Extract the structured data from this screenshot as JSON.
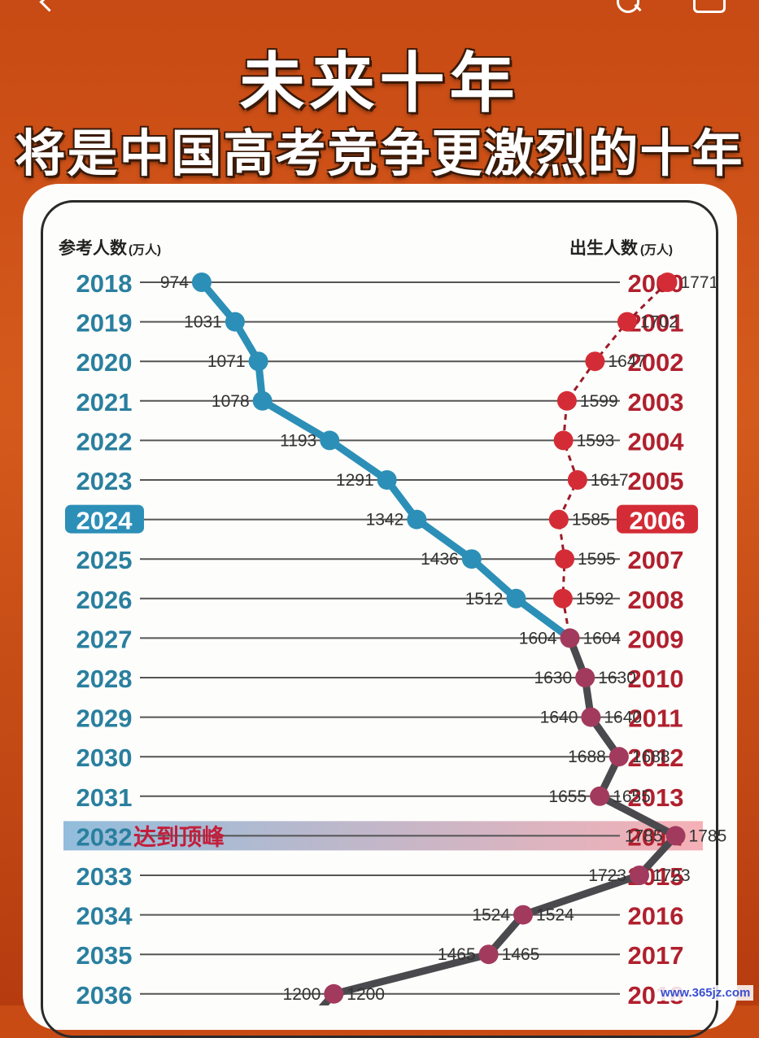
{
  "page": {
    "title_main": "未来十年",
    "title_sub": "将是中国高考竞争更激烈的十年",
    "watermark": "www.365jz.com"
  },
  "icons": {
    "back": "chevron-left-icon",
    "search": "search-icon",
    "more": "more-icon"
  },
  "colors": {
    "exam_color": "#2c8fb7",
    "birth_color": "#d42c36",
    "merged_color": "#4a4a4e",
    "highlight_left": "#7fb2d6",
    "highlight_right": "#f4a3aa",
    "peak_label_color": "#c21f3c"
  },
  "chart_data": {
    "type": "line",
    "left_axis_label": "参考人数",
    "left_axis_unit": "(万人)",
    "right_axis_label": "出生人数",
    "right_axis_unit": "(万人)",
    "exam_years": [
      "2018",
      "2019",
      "2020",
      "2021",
      "2022",
      "2023",
      "2024",
      "2025",
      "2026",
      "2027",
      "2028",
      "2029",
      "2030",
      "2031",
      "2032",
      "2033",
      "2034",
      "2035",
      "2036"
    ],
    "birth_years": [
      "2000",
      "2001",
      "2002",
      "2003",
      "2004",
      "2005",
      "2006",
      "2007",
      "2008",
      "2009",
      "2010",
      "2011",
      "2012",
      "2013",
      "2014",
      "2015",
      "2016",
      "2017",
      "2018"
    ],
    "highlight_exam_year": "2024",
    "highlight_birth_year": "2006",
    "peak_row_index": 14,
    "peak_label": "达到顶峰",
    "series": [
      {
        "name": "参考人数",
        "values": [
          974,
          1031,
          1071,
          1078,
          1193,
          1291,
          1342,
          1436,
          1512,
          1604,
          1630,
          1640,
          1688,
          1655,
          1785,
          1723,
          1524,
          1465,
          1200
        ]
      },
      {
        "name": "出生人数",
        "values": [
          1771,
          1702,
          1647,
          1599,
          1593,
          1617,
          1585,
          1595,
          1592,
          1604,
          1630,
          1640,
          1688,
          1655,
          1785,
          1723,
          1524,
          1465,
          1200
        ]
      }
    ],
    "value_range": [
      750,
      2000
    ]
  }
}
